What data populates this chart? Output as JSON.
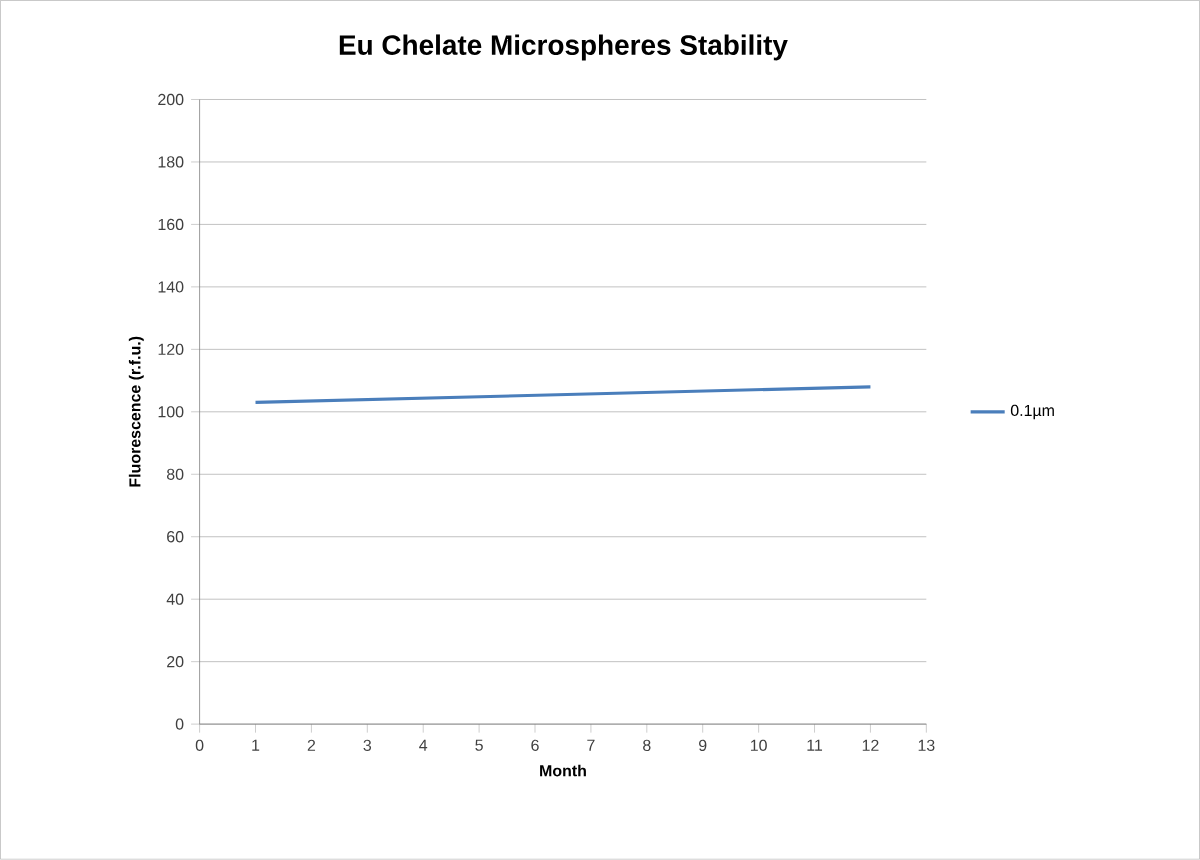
{
  "chart_data": {
    "type": "line",
    "title": "Eu Chelate Microspheres Stability",
    "xlabel": "Month",
    "ylabel": "Fluorescence (r.f.u.)",
    "x": [
      1,
      12
    ],
    "series": [
      {
        "name": "0.1µm",
        "color": "#4a7ebb",
        "values": [
          103,
          108
        ]
      }
    ],
    "xlim": [
      0,
      13
    ],
    "xticks": [
      0,
      1,
      2,
      3,
      4,
      5,
      6,
      7,
      8,
      9,
      10,
      11,
      12,
      13
    ],
    "ylim": [
      0,
      200
    ],
    "yticks": [
      0,
      20,
      40,
      60,
      80,
      100,
      120,
      140,
      160,
      180,
      200
    ],
    "grid": "y",
    "legend": "right",
    "marker": "none",
    "line_style": "solid"
  }
}
